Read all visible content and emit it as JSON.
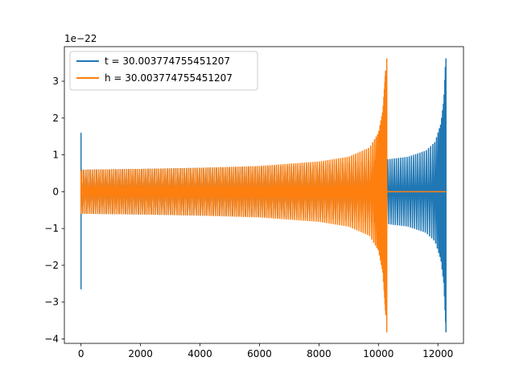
{
  "chart_data": {
    "type": "line",
    "title": "",
    "xlabel": "",
    "ylabel": "",
    "xlim": [
      -560,
      12860
    ],
    "ylim": [
      -4.12,
      3.94
    ],
    "y_scale_note": "1e−22",
    "x_ticks": [
      0,
      2000,
      4000,
      6000,
      8000,
      10000,
      12000
    ],
    "x_tick_labels": [
      "0",
      "2000",
      "4000",
      "6000",
      "8000",
      "10000",
      "12000"
    ],
    "y_ticks": [
      -4,
      -3,
      -2,
      -1,
      0,
      1,
      2,
      3
    ],
    "y_tick_labels": [
      "−4",
      "−3",
      "−2",
      "−1",
      "0",
      "1",
      "2",
      "3"
    ],
    "grid": false,
    "legend_position": "upper-left",
    "series": [
      {
        "name": "t = 30.003774755451207",
        "color": "#1f77b4",
        "start_spike": {
          "x": 0,
          "max": 1.6,
          "min": -2.65
        },
        "envelope": [
          {
            "x": 0,
            "amp": 0.6
          },
          {
            "x": 2000,
            "amp": 0.62
          },
          {
            "x": 4000,
            "amp": 0.65
          },
          {
            "x": 6000,
            "amp": 0.68
          },
          {
            "x": 8000,
            "amp": 0.72
          },
          {
            "x": 10300,
            "amp": 0.88
          },
          {
            "x": 11000,
            "amp": 0.95
          },
          {
            "x": 11600,
            "amp": 1.12
          },
          {
            "x": 11900,
            "amp": 1.35
          },
          {
            "x": 12100,
            "amp": 1.85
          },
          {
            "x": 12200,
            "amp": 2.5
          },
          {
            "x": 12260,
            "amp": 3.6
          }
        ],
        "end_spike": {
          "x": 12270,
          "max": 3.62,
          "min": -3.82
        },
        "end_x": 12270
      },
      {
        "name": "h = 30.003774755451207",
        "color": "#ff7f0e",
        "start_spike": {
          "x": 0,
          "max": 0.55,
          "min": -0.6
        },
        "envelope": [
          {
            "x": 0,
            "amp": 0.6
          },
          {
            "x": 2000,
            "amp": 0.62
          },
          {
            "x": 4000,
            "amp": 0.65
          },
          {
            "x": 6000,
            "amp": 0.7
          },
          {
            "x": 8000,
            "amp": 0.82
          },
          {
            "x": 9000,
            "amp": 0.95
          },
          {
            "x": 9700,
            "amp": 1.2
          },
          {
            "x": 10000,
            "amp": 1.6
          },
          {
            "x": 10150,
            "amp": 2.2
          },
          {
            "x": 10250,
            "amp": 3.4
          }
        ],
        "end_spike": {
          "x": 10280,
          "max": 3.62,
          "min": -3.82
        },
        "flat_after": {
          "from": 10300,
          "to": 12270,
          "value": 0
        }
      }
    ]
  }
}
